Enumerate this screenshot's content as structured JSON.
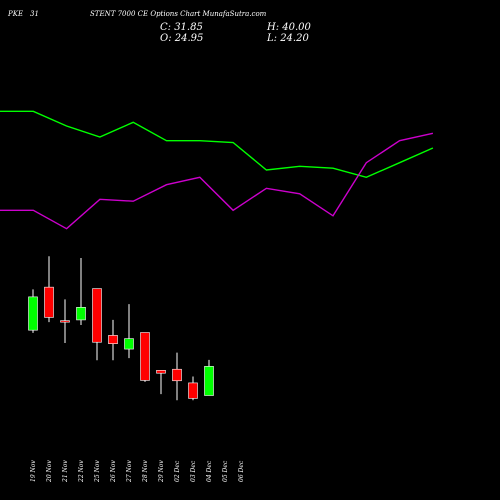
{
  "header": {
    "left_a": "PKE",
    "left_b": "31",
    "title": "STENT 7000  CE Options  Chart MunafaSutra.com",
    "close": "C: 31.85",
    "open": "O: 24.95",
    "high": "H: 40.00",
    "low": "L: 24.20"
  },
  "chart_data": {
    "type": "candlestick",
    "title": "STENT 7000  CE Options  Chart MunafaSutra.com",
    "categories": [
      "19 Nov",
      "20 Nov",
      "21 Nov",
      "22 Nov",
      "25 Nov",
      "26 Nov",
      "27 Nov",
      "28 Nov",
      "29 Nov",
      "02 Dec",
      "03 Dec",
      "04 Dec",
      "05 Dec",
      "06 Dec"
    ],
    "candles": [
      {
        "date": "19 Nov",
        "open": 24.95,
        "high": 36.3,
        "low": 24.2,
        "close": 34.2,
        "color": "green"
      },
      {
        "date": "20 Nov",
        "open": 36.9,
        "high": 45.5,
        "low": 27.2,
        "close": 28.5,
        "color": "red"
      },
      {
        "date": "21 Nov",
        "open": 27.6,
        "high": 33.5,
        "low": 21.4,
        "close": 27.3,
        "color": "red"
      },
      {
        "date": "22 Nov",
        "open": 27.8,
        "high": 45.0,
        "low": 26.4,
        "close": 31.3,
        "color": "green"
      },
      {
        "date": "25 Nov",
        "open": 36.5,
        "high": 36.5,
        "low": 16.6,
        "close": 21.6,
        "color": "red"
      },
      {
        "date": "26 Nov",
        "open": 23.5,
        "high": 27.8,
        "low": 16.6,
        "close": 21.2,
        "color": "red"
      },
      {
        "date": "27 Nov",
        "open": 19.7,
        "high": 32.2,
        "low": 17.2,
        "close": 22.6,
        "color": "green"
      },
      {
        "date": "28 Nov",
        "open": 24.3,
        "high": 24.3,
        "low": 10.6,
        "close": 11.0,
        "color": "red"
      },
      {
        "date": "29 Nov",
        "open": 13.8,
        "high": 13.8,
        "low": 7.2,
        "close": 13.0,
        "color": "red"
      },
      {
        "date": "02 Dec",
        "open": 14.1,
        "high": 18.7,
        "low": 5.5,
        "close": 10.9,
        "color": "red"
      },
      {
        "date": "03 Dec",
        "open": 10.3,
        "high": 12.1,
        "low": 5.5,
        "close": 6.0,
        "color": "red"
      },
      {
        "date": "04 Dec",
        "open": 6.8,
        "high": 16.7,
        "low": 6.8,
        "close": 14.9,
        "color": "green"
      }
    ],
    "lines": [
      {
        "color": "#00ff00",
        "y": [
          92,
          92,
          84,
          78,
          86,
          76,
          76,
          75,
          60,
          62,
          61,
          56,
          64,
          72
        ]
      },
      {
        "color": "#cc00cc",
        "y": [
          38,
          38,
          28,
          44,
          43,
          52,
          56,
          38,
          50,
          47,
          35,
          64,
          76,
          80
        ]
      }
    ],
    "indicator_ylim": [
      0,
      120
    ],
    "price_ylim": [
      0,
      50
    ],
    "grid": false,
    "legend": "none"
  }
}
